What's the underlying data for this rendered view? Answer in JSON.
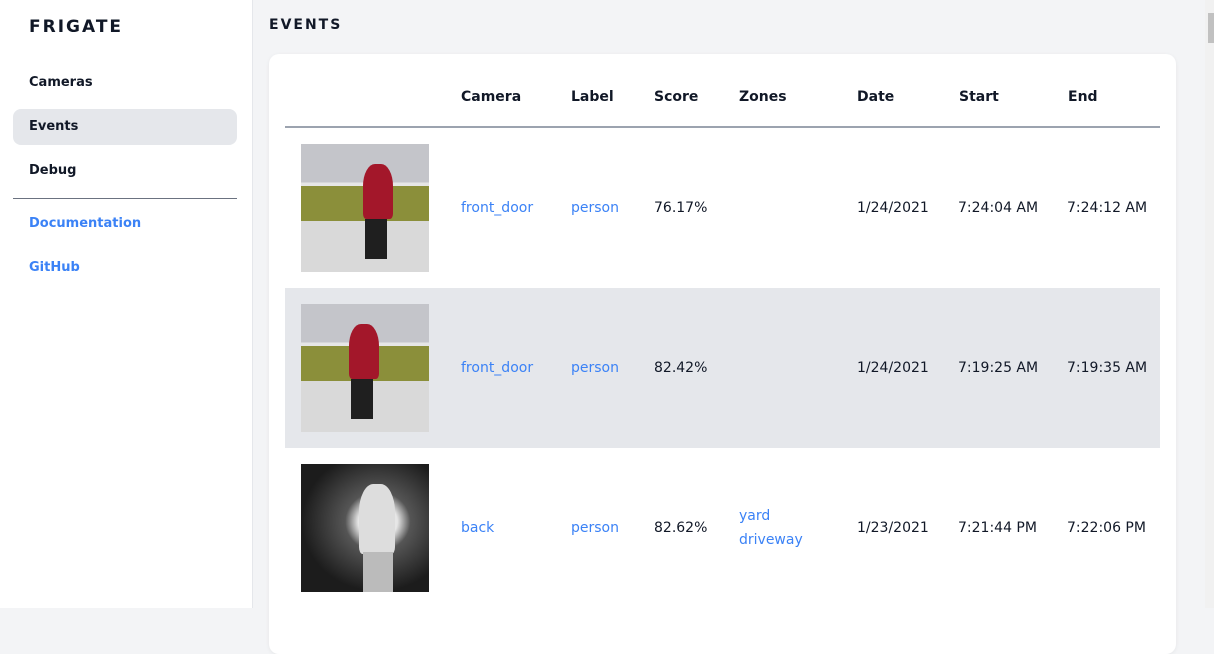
{
  "sidebar": {
    "brand": "FRIGATE",
    "items": [
      {
        "label": "Cameras"
      },
      {
        "label": "Events"
      },
      {
        "label": "Debug"
      }
    ],
    "links": [
      {
        "label": "Documentation"
      },
      {
        "label": "GitHub"
      }
    ]
  },
  "page": {
    "title": "EVENTS"
  },
  "table": {
    "headers": [
      "Camera",
      "Label",
      "Score",
      "Zones",
      "Date",
      "Start",
      "End"
    ],
    "rows": [
      {
        "camera": "front_door",
        "label": "person",
        "score": "76.17%",
        "zones": [
          "",
          ""
        ],
        "date": "1/24/2021",
        "start": "7:24:04 AM",
        "end": "7:24:12 AM"
      },
      {
        "camera": "front_door",
        "label": "person",
        "score": "82.42%",
        "zones": [
          "",
          ""
        ],
        "date": "1/24/2021",
        "start": "7:19:25 AM",
        "end": "7:19:35 AM"
      },
      {
        "camera": "back",
        "label": "person",
        "score": "82.62%",
        "zones": [
          "yard",
          "driveway"
        ],
        "date": "1/23/2021",
        "start": "7:21:44 PM",
        "end": "7:22:06 PM"
      }
    ]
  },
  "colors": {
    "accent": "#3b82f6",
    "active_bg": "#e5e7eb"
  }
}
